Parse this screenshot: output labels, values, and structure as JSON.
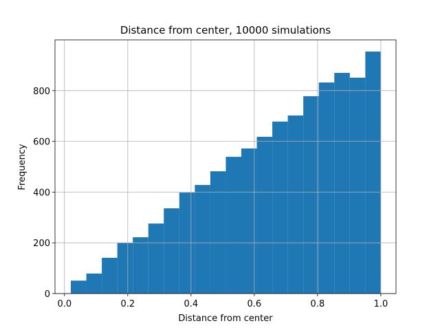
{
  "chart_data": {
    "type": "histogram",
    "title": "Distance from center, 10000 simulations",
    "xlabel": "Distance from center",
    "ylabel": "Frequency",
    "bins": [
      0.02,
      0.069,
      0.118,
      0.167,
      0.216,
      0.265,
      0.314,
      0.363,
      0.412,
      0.461,
      0.51,
      0.559,
      0.608,
      0.657,
      0.706,
      0.755,
      0.804,
      0.853,
      0.902,
      0.951,
      1.0
    ],
    "values": [
      51,
      79,
      141,
      200,
      222,
      276,
      336,
      398,
      428,
      482,
      539,
      572,
      618,
      678,
      702,
      778,
      832,
      870,
      851,
      954
    ],
    "color": "#1f77b4",
    "xlim": [
      -0.03,
      1.048
    ],
    "ylim": [
      0,
      1000
    ],
    "xticks": [
      {
        "value": 0,
        "label": "0.0"
      },
      0.2,
      0.4,
      0.6,
      0.8,
      {
        "value": 1,
        "label": "1.0"
      }
    ],
    "yticks": [
      0,
      200,
      400,
      600,
      800
    ],
    "grid": true
  }
}
